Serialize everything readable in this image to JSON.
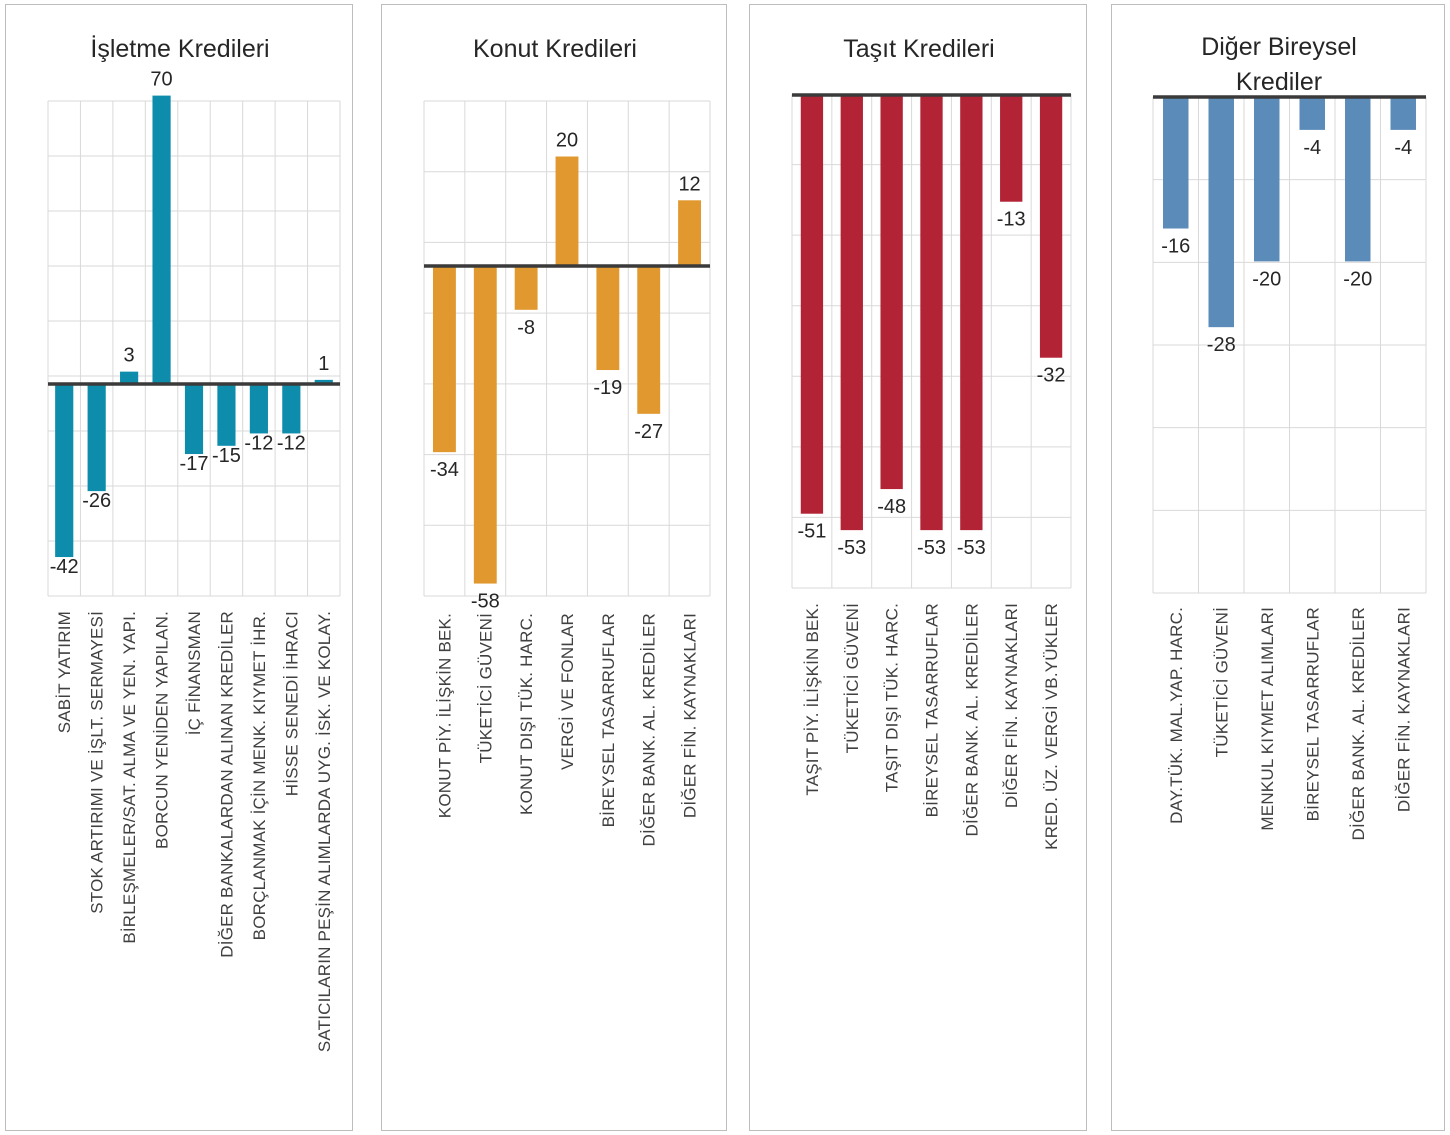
{
  "chart_data": [
    {
      "type": "bar",
      "title": "İşletme Kredileri",
      "categories": [
        "SABİT YATIRIM",
        "STOK ARTIRIMI VE İŞLT. SERMAYESİ",
        "BİRLEŞMELER/SAT. ALMA VE YEN. YAPI.",
        "BORCUN YENİDEN YAPILAN.",
        "İÇ FİNANSMAN",
        "DİĞER BANKALARDAN ALINAN KREDİLER",
        "BORÇLANMAK İÇİN MENK. KIYMET İHR.",
        "HİSSE SENEDİ İHRACI",
        "SATICILARIN PEŞİN ALIMLARDA UYG. İSK. VE KOLAY."
      ],
      "values": [
        -42,
        -26,
        3,
        70,
        -17,
        -15,
        -12,
        -12,
        1
      ],
      "color": "#0E8CAB",
      "grid": true
    },
    {
      "type": "bar",
      "title": "Konut Kredileri",
      "categories": [
        "KONUT PİY. İLİŞKİN BEK.",
        "TÜKETİCİ GÜVENİ",
        "KONUT DIŞI TÜK. HARC.",
        "VERGİ VE FONLAR",
        "BİREYSEL TASARRUFLAR",
        "DİĞER BANK. AL. KREDİLER",
        "DİĞER FİN. KAYNAKLARI"
      ],
      "values": [
        -34,
        -58,
        -8,
        20,
        -19,
        -27,
        12
      ],
      "color": "#E0982F",
      "grid": true
    },
    {
      "type": "bar",
      "title": "Taşıt Kredileri",
      "categories": [
        "TAŞIT PİY. İLİŞKİN BEK.",
        "TÜKETİCİ GÜVENİ",
        "TAŞIT DIŞI TÜK. HARC.",
        "BİREYSEL TASARRUFLAR",
        "DİĞER BANK. AL. KREDİLER",
        "DİĞER FİN. KAYNAKLARI",
        "KRED. ÜZ. VERGİ VB.YÜKLER"
      ],
      "values": [
        -51,
        -53,
        -48,
        -53,
        -53,
        -13,
        -32
      ],
      "color": "#B22335",
      "grid": true
    },
    {
      "type": "bar",
      "title": "Diğer Bireysel Krediler",
      "title_lines": [
        "Diğer Bireysel",
        "Krediler"
      ],
      "categories": [
        "DAY.TÜK. MAL.YAP. HARC.",
        "TÜKETİCİ GÜVENİ",
        "MENKUL KIYMET ALIMLARI",
        "BİREYSEL TASARRUFLAR",
        "DİĞER BANK. AL. KREDİLER",
        "DİĞER FİN. KAYNAKLARI"
      ],
      "values": [
        -16,
        -28,
        -20,
        -4,
        -20,
        -4
      ],
      "color": "#5B8BB8",
      "grid": true
    }
  ]
}
